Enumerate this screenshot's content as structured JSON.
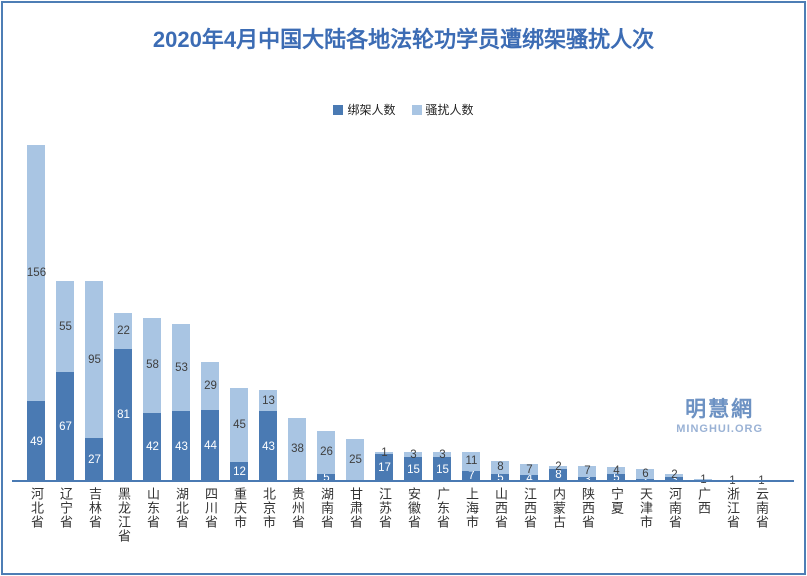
{
  "chart_data": {
    "type": "bar",
    "stacked": true,
    "title": "2020年4月中国大陆各地法轮功学员遭绑架骚扰人次",
    "legend_position": "top",
    "grid": false,
    "ylim": [
      0,
      205
    ],
    "categories": [
      "河北省",
      "辽宁省",
      "吉林省",
      "黑龙江省",
      "山东省",
      "湖北省",
      "四川省",
      "重庆市",
      "北京市",
      "贵州省",
      "湖南省",
      "甘肃省",
      "江苏省",
      "安徽省",
      "广东省",
      "上海市",
      "山西省",
      "江西省",
      "内蒙古",
      "陕西省",
      "宁夏",
      "天津市",
      "河南省",
      "广西",
      "浙江省",
      "云南省"
    ],
    "series": [
      {
        "name": "绑架人数",
        "color": "#4a7ab3",
        "label_color": "#ffffff",
        "values": [
          49,
          67,
          27,
          81,
          42,
          43,
          44,
          12,
          43,
          1,
          5,
          1,
          17,
          15,
          15,
          7,
          5,
          4,
          8,
          3,
          5,
          2,
          3,
          1,
          0,
          0
        ]
      },
      {
        "name": "骚扰人数",
        "color": "#a9c5e3",
        "label_color": "#3f3f3f",
        "values": [
          156,
          55,
          95,
          22,
          58,
          53,
          29,
          45,
          13,
          38,
          26,
          25,
          1,
          3,
          3,
          11,
          8,
          7,
          2,
          7,
          4,
          6,
          2,
          1,
          1,
          1
        ]
      }
    ],
    "axis_line_color": "#4a7ab3"
  },
  "title_color": "#3c6cb4",
  "frame_color": "#4e7eb5",
  "watermark": {
    "name": "明慧網",
    "domain": "MINGHUI.ORG"
  }
}
